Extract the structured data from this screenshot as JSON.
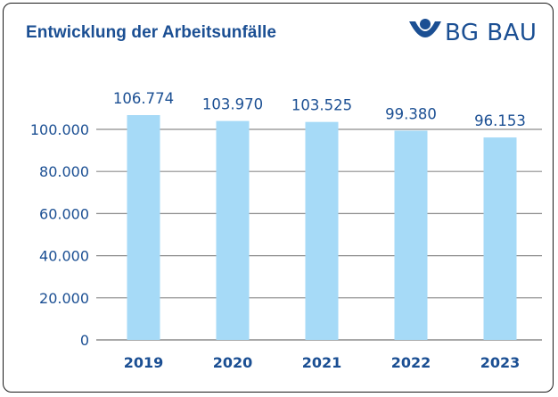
{
  "header": {
    "title": "Entwicklung der Arbeitsunfälle",
    "logo_text": "BG BAU",
    "logo_icon": "bg-bau-emblem-icon"
  },
  "colors": {
    "accent": "#1b4f93",
    "bar": "#a6daf7",
    "grid": "#8c8c8c"
  },
  "chart_data": {
    "type": "bar",
    "title": "Entwicklung der Arbeitsunfälle",
    "xlabel": "",
    "ylabel": "",
    "categories": [
      "2019",
      "2020",
      "2021",
      "2022",
      "2023"
    ],
    "values": [
      106774,
      103970,
      103525,
      99380,
      96153
    ],
    "value_labels": [
      "106.774",
      "103.970",
      "103.525",
      "99.380",
      "96.153"
    ],
    "y_ticks": [
      0,
      20000,
      40000,
      60000,
      80000,
      100000
    ],
    "y_tick_labels": [
      "0",
      "20.000",
      "40.000",
      "60.000",
      "80.000",
      "100.000"
    ],
    "ylim": [
      0,
      100000
    ],
    "grid": true,
    "legend": "none"
  }
}
